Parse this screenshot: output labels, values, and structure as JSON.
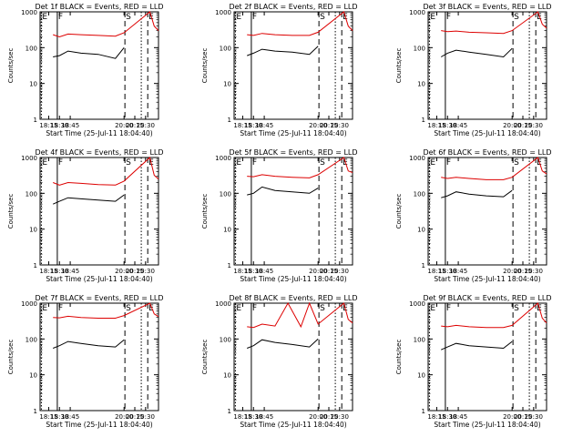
{
  "chart_data": [
    {
      "type": "line",
      "title": "Det 1f BLACK = Events, RED = LLD",
      "xlabel": "Start Time (25-Jul-11 18:04:40)",
      "ylabel": "Counts/sec",
      "ylim": [
        1,
        1000
      ],
      "xlim": [
        18.05,
        20.8
      ],
      "yscale": "log",
      "x_ticks": [
        "18:15",
        "18:30",
        "18:45",
        "20:00",
        "20:15",
        "20:30"
      ],
      "y_ticks": [
        "1",
        "10",
        "100",
        "1000"
      ],
      "markers": [
        {
          "label": "E",
          "x": 18.08,
          "style": "dotted"
        },
        {
          "label": "F",
          "x": 18.45,
          "style": "solid"
        },
        {
          "label": "S",
          "x": 20.02,
          "style": "dashed"
        },
        {
          "label": "E",
          "x": 20.55,
          "style": "dashed"
        },
        {
          "label": "",
          "x": 20.4,
          "style": "dotted"
        }
      ],
      "series": [
        {
          "color": "#dd0000",
          "x": [
            18.35,
            18.5,
            18.7,
            19.0,
            19.4,
            19.8,
            20.0,
            20.6,
            20.7,
            20.8
          ],
          "values": [
            230,
            200,
            240,
            230,
            220,
            210,
            260,
            1000,
            400,
            300
          ]
        },
        {
          "color": "#000000",
          "x": [
            18.35,
            18.5,
            18.7,
            19.0,
            19.4,
            19.8,
            20.0
          ],
          "values": [
            55,
            60,
            80,
            70,
            65,
            50,
            100
          ]
        }
      ]
    },
    {
      "type": "line",
      "title": "Det 2f BLACK = Events, RED = LLD",
      "xlabel": "Start Time (25-Jul-11 18:04:40)",
      "ylabel": "Counts/sec",
      "ylim": [
        1,
        1000
      ],
      "xlim": [
        18.05,
        20.8
      ],
      "yscale": "log",
      "x_ticks": [
        "18:15",
        "18:30",
        "18:45",
        "20:00",
        "20:15",
        "20:30"
      ],
      "y_ticks": [
        "1",
        "10",
        "100",
        "1000"
      ],
      "markers": [
        {
          "label": "E",
          "x": 18.08,
          "style": "dotted"
        },
        {
          "label": "F",
          "x": 18.45,
          "style": "solid"
        },
        {
          "label": "S",
          "x": 20.02,
          "style": "dashed"
        },
        {
          "label": "E",
          "x": 20.55,
          "style": "dashed"
        },
        {
          "label": "",
          "x": 20.4,
          "style": "dotted"
        }
      ],
      "series": [
        {
          "color": "#dd0000",
          "x": [
            18.35,
            18.5,
            18.7,
            19.0,
            19.4,
            19.8,
            20.0,
            20.6,
            20.7,
            20.8
          ],
          "values": [
            230,
            220,
            250,
            230,
            220,
            220,
            270,
            1000,
            400,
            300
          ]
        },
        {
          "color": "#000000",
          "x": [
            18.35,
            18.5,
            18.7,
            19.0,
            19.4,
            19.8,
            20.0
          ],
          "values": [
            60,
            70,
            90,
            80,
            75,
            65,
            110
          ]
        }
      ]
    },
    {
      "type": "line",
      "title": "Det 3f BLACK = Events, RED = LLD",
      "xlabel": "Start Time (25-Jul-11 18:04:40)",
      "ylabel": "Counts/sec",
      "ylim": [
        1,
        1000
      ],
      "xlim": [
        18.05,
        20.8
      ],
      "yscale": "log",
      "x_ticks": [
        "18:15",
        "18:30",
        "18:45",
        "20:00",
        "20:15",
        "20:30"
      ],
      "y_ticks": [
        "1",
        "10",
        "100",
        "1000"
      ],
      "markers": [
        {
          "label": "E",
          "x": 18.08,
          "style": "dotted"
        },
        {
          "label": "F",
          "x": 18.45,
          "style": "solid"
        },
        {
          "label": "S",
          "x": 20.02,
          "style": "dashed"
        },
        {
          "label": "E",
          "x": 20.55,
          "style": "dashed"
        },
        {
          "label": "",
          "x": 20.4,
          "style": "dotted"
        }
      ],
      "series": [
        {
          "color": "#dd0000",
          "x": [
            18.35,
            18.5,
            18.7,
            19.0,
            19.4,
            19.8,
            20.0,
            20.6,
            20.7,
            20.8
          ],
          "values": [
            300,
            280,
            290,
            270,
            260,
            250,
            300,
            1000,
            450,
            350
          ]
        },
        {
          "color": "#000000",
          "x": [
            18.35,
            18.5,
            18.7,
            19.0,
            19.4,
            19.8,
            20.0
          ],
          "values": [
            55,
            70,
            85,
            75,
            65,
            55,
            95
          ]
        }
      ]
    },
    {
      "type": "line",
      "title": "Det 4f BLACK = Events, RED = LLD",
      "xlabel": "Start Time (25-Jul-11 18:04:40)",
      "ylabel": "Counts/sec",
      "ylim": [
        1,
        1000
      ],
      "xlim": [
        18.05,
        20.8
      ],
      "yscale": "log",
      "x_ticks": [
        "18:15",
        "18:30",
        "18:45",
        "20:00",
        "20:15",
        "20:30"
      ],
      "y_ticks": [
        "1",
        "10",
        "100",
        "1000"
      ],
      "markers": [
        {
          "label": "E",
          "x": 18.08,
          "style": "dotted"
        },
        {
          "label": "F",
          "x": 18.45,
          "style": "solid"
        },
        {
          "label": "S",
          "x": 20.02,
          "style": "dashed"
        },
        {
          "label": "E",
          "x": 20.55,
          "style": "dashed"
        },
        {
          "label": "",
          "x": 20.4,
          "style": "dotted"
        }
      ],
      "series": [
        {
          "color": "#dd0000",
          "x": [
            18.35,
            18.5,
            18.7,
            19.0,
            19.4,
            19.8,
            20.0,
            20.6,
            20.7,
            20.8
          ],
          "values": [
            200,
            170,
            200,
            190,
            175,
            170,
            220,
            1000,
            320,
            250
          ]
        },
        {
          "color": "#000000",
          "x": [
            18.35,
            18.5,
            18.7,
            19.0,
            19.4,
            19.8,
            20.0
          ],
          "values": [
            50,
            60,
            75,
            70,
            65,
            60,
            90
          ]
        }
      ]
    },
    {
      "type": "line",
      "title": "Det 5f BLACK = Events, RED = LLD",
      "xlabel": "Start Time (25-Jul-11 18:04:40)",
      "ylabel": "Counts/sec",
      "ylim": [
        1,
        1000
      ],
      "xlim": [
        18.05,
        20.8
      ],
      "yscale": "log",
      "x_ticks": [
        "18:15",
        "18:30",
        "18:45",
        "20:00",
        "20:15",
        "20:30"
      ],
      "y_ticks": [
        "1",
        "10",
        "100",
        "1000"
      ],
      "markers": [
        {
          "label": "E",
          "x": 18.08,
          "style": "dotted"
        },
        {
          "label": "F",
          "x": 18.45,
          "style": "solid"
        },
        {
          "label": "S",
          "x": 20.02,
          "style": "dashed"
        },
        {
          "label": "E",
          "x": 20.55,
          "style": "dashed"
        },
        {
          "label": "",
          "x": 20.4,
          "style": "dotted"
        }
      ],
      "series": [
        {
          "color": "#dd0000",
          "x": [
            18.35,
            18.5,
            18.7,
            19.0,
            19.4,
            19.8,
            20.0,
            20.6,
            20.7,
            20.8
          ],
          "values": [
            300,
            290,
            330,
            300,
            280,
            270,
            330,
            1000,
            420,
            380
          ]
        },
        {
          "color": "#000000",
          "x": [
            18.35,
            18.5,
            18.7,
            19.0,
            19.4,
            19.8,
            20.0
          ],
          "values": [
            90,
            100,
            150,
            120,
            110,
            100,
            140
          ]
        }
      ]
    },
    {
      "type": "line",
      "title": "Det 6f BLACK = Events, RED = LLD",
      "xlabel": "Start Time (25-Jul-11 18:04:40)",
      "ylabel": "Counts/sec",
      "ylim": [
        1,
        1000
      ],
      "xlim": [
        18.05,
        20.8
      ],
      "yscale": "log",
      "x_ticks": [
        "18:15",
        "18:30",
        "18:45",
        "20:00",
        "20:15",
        "20:30"
      ],
      "y_ticks": [
        "1",
        "10",
        "100",
        "1000"
      ],
      "markers": [
        {
          "label": "E",
          "x": 18.08,
          "style": "dotted"
        },
        {
          "label": "F",
          "x": 18.45,
          "style": "solid"
        },
        {
          "label": "S",
          "x": 20.02,
          "style": "dashed"
        },
        {
          "label": "E",
          "x": 20.55,
          "style": "dashed"
        },
        {
          "label": "",
          "x": 20.4,
          "style": "dotted"
        }
      ],
      "series": [
        {
          "color": "#dd0000",
          "x": [
            18.35,
            18.5,
            18.7,
            19.0,
            19.4,
            19.8,
            20.0,
            20.6,
            20.7,
            20.8
          ],
          "values": [
            280,
            260,
            280,
            260,
            240,
            240,
            280,
            1000,
            420,
            350
          ]
        },
        {
          "color": "#000000",
          "x": [
            18.35,
            18.5,
            18.7,
            19.0,
            19.4,
            19.8,
            20.0
          ],
          "values": [
            75,
            85,
            110,
            95,
            85,
            80,
            120
          ]
        }
      ]
    },
    {
      "type": "line",
      "title": "Det 7f BLACK = Events, RED = LLD",
      "xlabel": "Start Time (25-Jul-11 18:04:40)",
      "ylabel": "Counts/sec",
      "ylim": [
        1,
        1000
      ],
      "xlim": [
        18.05,
        20.8
      ],
      "yscale": "log",
      "x_ticks": [
        "18:15",
        "18:30",
        "18:45",
        "20:00",
        "20:15",
        "20:30"
      ],
      "y_ticks": [
        "1",
        "10",
        "100",
        "1000"
      ],
      "markers": [
        {
          "label": "E",
          "x": 18.08,
          "style": "dotted"
        },
        {
          "label": "F",
          "x": 18.45,
          "style": "solid"
        },
        {
          "label": "S",
          "x": 20.02,
          "style": "dashed"
        },
        {
          "label": "E",
          "x": 20.55,
          "style": "dashed"
        },
        {
          "label": "",
          "x": 20.4,
          "style": "dotted"
        }
      ],
      "series": [
        {
          "color": "#dd0000",
          "x": [
            18.35,
            18.5,
            18.7,
            19.0,
            19.4,
            19.8,
            20.0,
            20.6,
            20.7,
            20.8
          ],
          "values": [
            400,
            390,
            430,
            400,
            380,
            380,
            450,
            1000,
            500,
            420
          ]
        },
        {
          "color": "#000000",
          "x": [
            18.35,
            18.5,
            18.7,
            19.0,
            19.4,
            19.8,
            20.0
          ],
          "values": [
            55,
            65,
            85,
            75,
            65,
            60,
            95
          ]
        }
      ]
    },
    {
      "type": "line",
      "title": "Det 8f BLACK = Events, RED = LLD",
      "xlabel": "Start Time (25-Jul-11 18:04:40)",
      "ylabel": "Counts/sec",
      "ylim": [
        1,
        1000
      ],
      "xlim": [
        18.05,
        20.8
      ],
      "yscale": "log",
      "x_ticks": [
        "18:15",
        "18:30",
        "18:45",
        "20:00",
        "20:15",
        "20:30"
      ],
      "y_ticks": [
        "1",
        "10",
        "100",
        "1000"
      ],
      "markers": [
        {
          "label": "E",
          "x": 18.08,
          "style": "dotted"
        },
        {
          "label": "F",
          "x": 18.45,
          "style": "solid"
        },
        {
          "label": "S",
          "x": 20.02,
          "style": "dashed"
        },
        {
          "label": "E",
          "x": 20.55,
          "style": "dashed"
        },
        {
          "label": "",
          "x": 20.4,
          "style": "dotted"
        }
      ],
      "series": [
        {
          "color": "#dd0000",
          "x": [
            18.35,
            18.5,
            18.7,
            19.0,
            19.3,
            19.6,
            19.8,
            20.0,
            20.6,
            20.7,
            20.8
          ],
          "values": [
            220,
            210,
            260,
            230,
            1000,
            220,
            1000,
            260,
            1000,
            350,
            280
          ]
        },
        {
          "color": "#000000",
          "x": [
            18.35,
            18.5,
            18.7,
            19.0,
            19.4,
            19.8,
            20.0
          ],
          "values": [
            55,
            65,
            95,
            80,
            70,
            60,
            100
          ]
        }
      ]
    },
    {
      "type": "line",
      "title": "Det 9f BLACK = Events, RED = LLD",
      "xlabel": "Start Time (25-Jul-11 18:04:40)",
      "ylabel": "Counts/sec",
      "ylim": [
        1,
        1000
      ],
      "xlim": [
        18.05,
        20.8
      ],
      "yscale": "log",
      "x_ticks": [
        "18:15",
        "18:30",
        "18:45",
        "20:00",
        "20:15",
        "20:30"
      ],
      "y_ticks": [
        "1",
        "10",
        "100",
        "1000"
      ],
      "markers": [
        {
          "label": "E",
          "x": 18.08,
          "style": "dotted"
        },
        {
          "label": "F",
          "x": 18.45,
          "style": "solid"
        },
        {
          "label": "S",
          "x": 20.02,
          "style": "dashed"
        },
        {
          "label": "E",
          "x": 20.55,
          "style": "dashed"
        },
        {
          "label": "",
          "x": 20.4,
          "style": "dotted"
        }
      ],
      "series": [
        {
          "color": "#dd0000",
          "x": [
            18.35,
            18.5,
            18.7,
            19.0,
            19.4,
            19.8,
            20.0,
            20.6,
            20.7,
            20.8
          ],
          "values": [
            230,
            220,
            240,
            220,
            210,
            210,
            240,
            1000,
            380,
            280
          ]
        },
        {
          "color": "#000000",
          "x": [
            18.35,
            18.5,
            18.7,
            19.0,
            19.4,
            19.8,
            20.0
          ],
          "values": [
            50,
            60,
            75,
            65,
            60,
            55,
            85
          ]
        }
      ]
    }
  ]
}
